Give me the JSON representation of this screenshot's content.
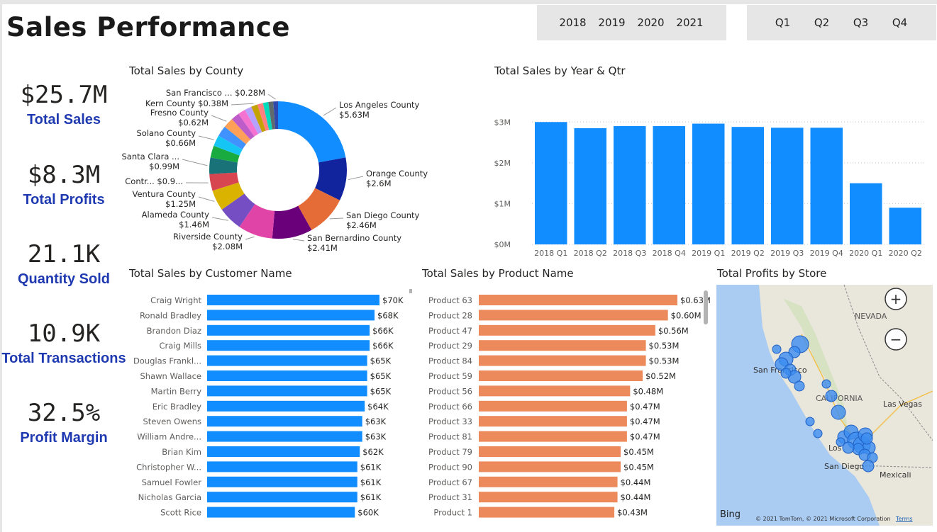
{
  "title": "Sales Performance",
  "years": [
    "2018",
    "2019",
    "2020",
    "2021"
  ],
  "quarters": [
    "Q1",
    "Q2",
    "Q3",
    "Q4"
  ],
  "kpis": [
    {
      "value": "$25.7M",
      "label": "Total Sales"
    },
    {
      "value": "$8.3M",
      "label": "Total Profits"
    },
    {
      "value": "21.1K",
      "label": "Quantity Sold"
    },
    {
      "value": "10.9K",
      "label": "Total Transactions"
    },
    {
      "value": "32.5%",
      "label": "Profit Margin"
    }
  ],
  "chart_data": [
    {
      "type": "pie",
      "title": "Total Sales by County",
      "slices": [
        {
          "name": "Los Angeles County",
          "value": 5.63,
          "label": "$5.63M",
          "color": "#118dff"
        },
        {
          "name": "Orange County",
          "value": 2.6,
          "label": "$2.6M",
          "color": "#12239e"
        },
        {
          "name": "San Diego County",
          "value": 2.46,
          "label": "$2.46M",
          "color": "#e66c37"
        },
        {
          "name": "San Bernardino County",
          "value": 2.41,
          "label": "$2.41M",
          "color": "#6b007b"
        },
        {
          "name": "Riverside County",
          "value": 2.08,
          "label": "$2.08M",
          "color": "#e044a7"
        },
        {
          "name": "Alameda County",
          "value": 1.46,
          "label": "$1.46M",
          "color": "#744ec2"
        },
        {
          "name": "Ventura County",
          "value": 1.25,
          "label": "$1.25M",
          "color": "#d9b300"
        },
        {
          "name": "Contr...",
          "value": 1.0,
          "label": "$0.9...",
          "color": "#d64550"
        },
        {
          "name": "Santa Clara ...",
          "value": 0.99,
          "label": "$0.99M",
          "color": "#197278"
        },
        {
          "name": "",
          "value": 0.72,
          "label": "",
          "color": "#1aab40"
        },
        {
          "name": "Solano County",
          "value": 0.66,
          "label": "$0.66M",
          "color": "#15c6f4"
        },
        {
          "name": "",
          "value": 0.64,
          "label": "",
          "color": "#4092ff"
        },
        {
          "name": "Fresno County",
          "value": 0.62,
          "label": "$0.62M",
          "color": "#ffa058"
        },
        {
          "name": "",
          "value": 0.5,
          "label": "",
          "color": "#be5dc9"
        },
        {
          "name": "",
          "value": 0.45,
          "label": "",
          "color": "#f472d0"
        },
        {
          "name": "",
          "value": 0.42,
          "label": "",
          "color": "#b5a1ff"
        },
        {
          "name": "Kern County",
          "value": 0.38,
          "label": "$0.38M",
          "color": "#c4a200"
        },
        {
          "name": "",
          "value": 0.34,
          "label": "",
          "color": "#ff8080"
        },
        {
          "name": "",
          "value": 0.32,
          "label": "",
          "color": "#00dbbc"
        },
        {
          "name": "",
          "value": 0.3,
          "label": "",
          "color": "#5f6b6d"
        },
        {
          "name": "San Francisco ...",
          "value": 0.28,
          "label": "$0.28M",
          "color": "#3049ad"
        }
      ]
    },
    {
      "type": "bar",
      "title": "Total Sales by Year & Qtr",
      "categories": [
        "2018 Q1",
        "2018 Q2",
        "2018 Q3",
        "2018 Q4",
        "2019 Q1",
        "2019 Q2",
        "2019 Q3",
        "2019 Q4",
        "2020 Q1",
        "2020 Q2"
      ],
      "values": [
        3.0,
        2.85,
        2.9,
        2.9,
        2.96,
        2.88,
        2.86,
        2.86,
        1.5,
        0.9
      ],
      "yticks": [
        "$0M",
        "$1M",
        "$2M",
        "$3M"
      ],
      "ylim": [
        0,
        3.3
      ],
      "color": "#118dff"
    },
    {
      "type": "bar",
      "orientation": "horizontal",
      "title": "Total Sales by Customer Name",
      "categories": [
        "Craig Wright",
        "Ronald Bradley",
        "Brandon Diaz",
        "Craig Mills",
        "Douglas Frankl...",
        "Shawn Wallace",
        "Martin Berry",
        "Eric Bradley",
        "Steven Owens",
        "William Andre...",
        "Brian Kim",
        "Christopher W...",
        "Samuel Fowler",
        "Nicholas Garcia",
        "Scott Rice"
      ],
      "values": [
        70,
        68,
        66,
        66,
        65,
        65,
        65,
        64,
        63,
        63,
        62,
        61,
        61,
        61,
        60
      ],
      "labels": [
        "$70K",
        "$68K",
        "$66K",
        "$66K",
        "$65K",
        "$65K",
        "$65K",
        "$64K",
        "$63K",
        "$63K",
        "$62K",
        "$61K",
        "$61K",
        "$61K",
        "$60K"
      ],
      "color": "#118dff"
    },
    {
      "type": "bar",
      "orientation": "horizontal",
      "title": "Total Sales by Product Name",
      "categories": [
        "Product 63",
        "Product 28",
        "Product 47",
        "Product 29",
        "Product 84",
        "Product 59",
        "Product 56",
        "Product 66",
        "Product 33",
        "Product 81",
        "Product 79",
        "Product 90",
        "Product 67",
        "Product 31",
        "Product 1"
      ],
      "values": [
        0.63,
        0.6,
        0.56,
        0.53,
        0.53,
        0.52,
        0.48,
        0.47,
        0.47,
        0.47,
        0.45,
        0.45,
        0.44,
        0.44,
        0.43
      ],
      "labels": [
        "$0.63M",
        "$0.60M",
        "$0.56M",
        "$0.53M",
        "$0.53M",
        "$0.52M",
        "$0.48M",
        "$0.47M",
        "$0.47M",
        "$0.47M",
        "$0.45M",
        "$0.45M",
        "$0.44M",
        "$0.44M",
        "$0.43M"
      ],
      "color": "#ec8a5c"
    }
  ],
  "map": {
    "title": "Total Profits by Store",
    "labels": {
      "nevada": "NEVADA",
      "sf": "San Francisco",
      "california": "CALIFORNIA",
      "lasvegas": "Las Vegas",
      "la": "Los",
      "sandiego": "San Diego",
      "mexicali": "Mexicali"
    },
    "bing": "Bing",
    "copyright": "© 2021 TomTom, © 2021 Microsoft Corporation",
    "terms": "Terms",
    "zoom_in": "+",
    "zoom_out": "−",
    "bubble_color": "#3b8cf0"
  }
}
